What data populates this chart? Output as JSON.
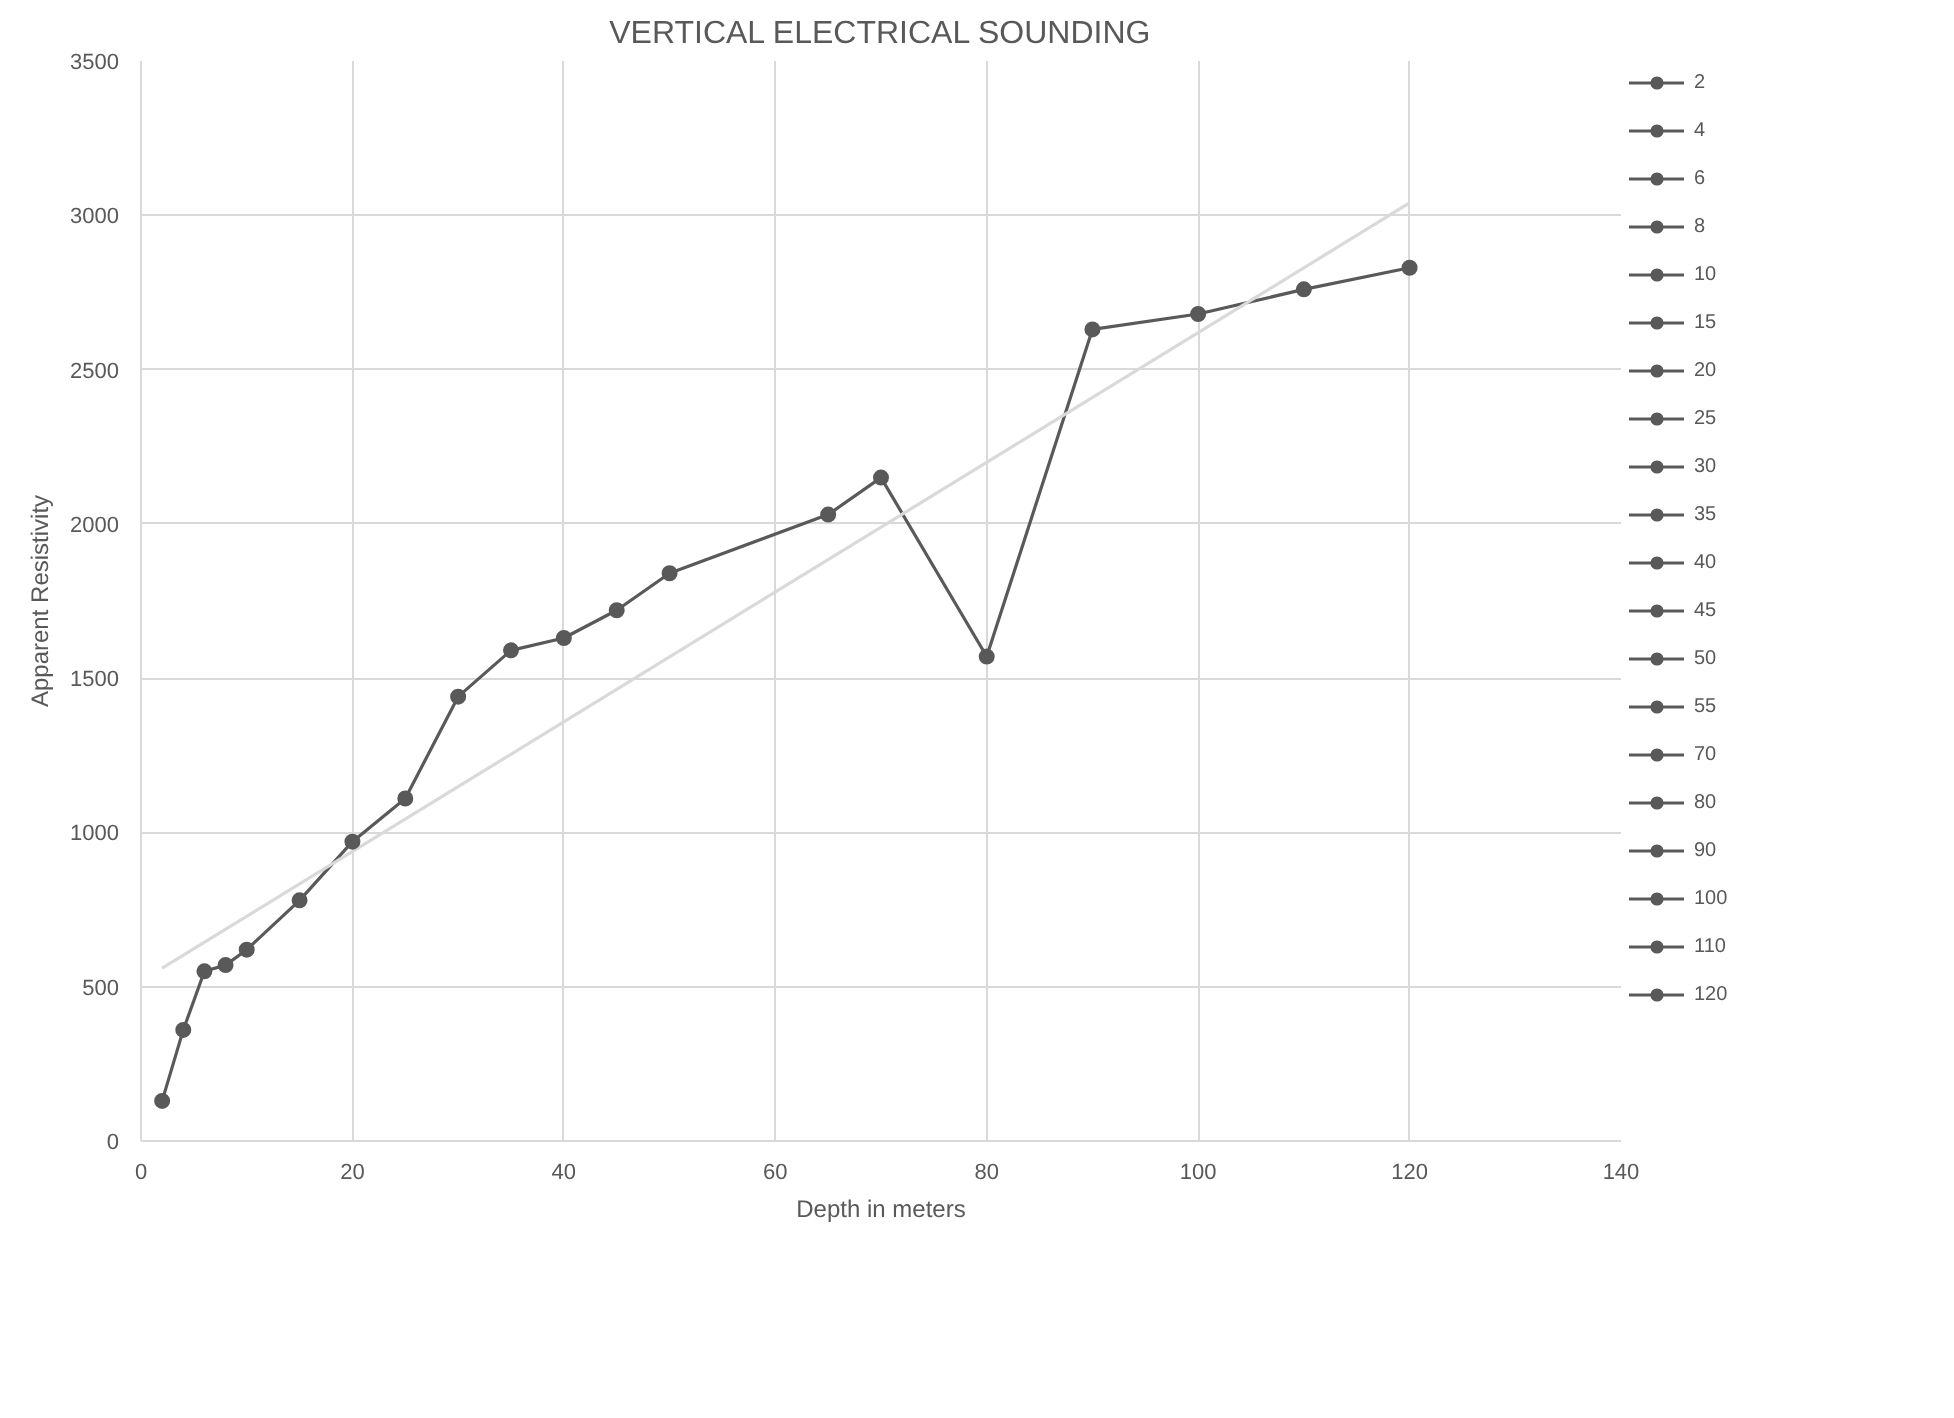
{
  "chart_data": {
    "type": "line",
    "title": "VERTICAL ELECTRICAL SOUNDING",
    "xlabel": "Depth in meters",
    "ylabel": "Apparent Resistivity",
    "xlim": [
      0,
      140
    ],
    "ylim": [
      0,
      3500
    ],
    "xticks": [
      0,
      20,
      40,
      60,
      80,
      100,
      120,
      140
    ],
    "yticks": [
      0,
      500,
      1000,
      1500,
      2000,
      2500,
      3000,
      3500
    ],
    "grid": true,
    "legend": "right",
    "marker": "circle",
    "line_style": "solid",
    "series": [
      {
        "color": "#595959",
        "marker": "none",
        "x": [
          2,
          4,
          6,
          8,
          10,
          15,
          20,
          25,
          30,
          35,
          40,
          45,
          50,
          65,
          70,
          80,
          90,
          100,
          110,
          120
        ],
        "values": [
          130,
          360,
          550,
          570,
          620,
          780,
          970,
          1110,
          1440,
          1590,
          1630,
          1720,
          1840,
          2030,
          2150,
          1570,
          2630,
          2680,
          2760,
          2830
        ]
      },
      {
        "color": "#d9d9d9",
        "marker": "none",
        "x": [
          2,
          120
        ],
        "values": [
          560,
          3040
        ]
      },
      {
        "name": "2",
        "color": "#595959",
        "x": [
          2
        ],
        "values": [
          130
        ]
      },
      {
        "name": "4",
        "color": "#595959",
        "x": [
          4
        ],
        "values": [
          360
        ]
      },
      {
        "name": "6",
        "color": "#595959",
        "x": [
          6
        ],
        "values": [
          550
        ]
      },
      {
        "name": "8",
        "color": "#595959",
        "x": [
          8
        ],
        "values": [
          570
        ]
      },
      {
        "name": "10",
        "color": "#595959",
        "x": [
          10
        ],
        "values": [
          620
        ]
      },
      {
        "name": "15",
        "color": "#595959",
        "x": [
          15
        ],
        "values": [
          780
        ]
      },
      {
        "name": "20",
        "color": "#595959",
        "x": [
          20
        ],
        "values": [
          970
        ]
      },
      {
        "name": "25",
        "color": "#595959",
        "x": [
          25
        ],
        "values": [
          1110
        ]
      },
      {
        "name": "30",
        "color": "#595959",
        "x": [
          30
        ],
        "values": [
          1440
        ]
      },
      {
        "name": "35",
        "color": "#595959",
        "x": [
          35
        ],
        "values": [
          1590
        ]
      },
      {
        "name": "40",
        "color": "#595959",
        "x": [
          40
        ],
        "values": [
          1630
        ]
      },
      {
        "name": "45",
        "color": "#595959",
        "x": [
          45
        ],
        "values": [
          1720
        ]
      },
      {
        "name": "50",
        "color": "#595959",
        "x": [
          50
        ],
        "values": [
          1840
        ]
      },
      {
        "name": "55",
        "color": "#595959",
        "x": [
          65
        ],
        "values": [
          2030
        ]
      },
      {
        "name": "70",
        "color": "#595959",
        "x": [
          70
        ],
        "values": [
          2150
        ]
      },
      {
        "name": "80",
        "color": "#595959",
        "x": [
          80
        ],
        "values": [
          1570
        ]
      },
      {
        "name": "90",
        "color": "#595959",
        "x": [
          90
        ],
        "values": [
          2630
        ]
      },
      {
        "name": "100",
        "color": "#595959",
        "x": [
          100
        ],
        "values": [
          2680
        ]
      },
      {
        "name": "110",
        "color": "#595959",
        "x": [
          110
        ],
        "values": [
          2760
        ]
      },
      {
        "name": "120",
        "color": "#595959",
        "x": [
          120
        ],
        "values": [
          2830
        ]
      }
    ]
  }
}
